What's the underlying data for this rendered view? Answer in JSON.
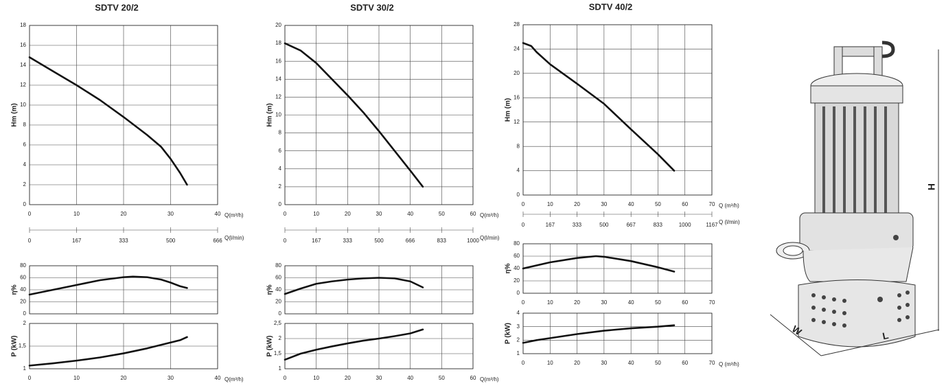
{
  "chart_data": [
    {
      "type": "line",
      "title": "SDTV 20/2",
      "ylabel": "Hm   (m)",
      "xlabel": "Q(m³/h)",
      "color": "#111",
      "x": [
        0,
        5,
        10,
        15,
        20,
        25,
        28,
        30,
        32,
        33.5
      ],
      "values": [
        14.8,
        13.4,
        12,
        10.5,
        8.8,
        7,
        5.8,
        4.6,
        3.2,
        2
      ],
      "xlim": [
        0,
        40
      ],
      "xticks": [
        0,
        10,
        20,
        30,
        40
      ],
      "ylim": [
        0,
        18
      ],
      "yticks": [
        0,
        2,
        4,
        6,
        8,
        10,
        12,
        14,
        16,
        18
      ],
      "x2label": "Q(l/min)",
      "x2lim": [
        0,
        666
      ],
      "x2ticks": [
        0,
        167,
        333,
        500,
        666
      ],
      "grid": true,
      "show_xtick_labels": true
    },
    {
      "type": "line",
      "ylabel": "η%",
      "color": "#111",
      "x": [
        0,
        5,
        10,
        15,
        20,
        22,
        25,
        28,
        30,
        32,
        33.5
      ],
      "values": [
        32,
        40,
        48,
        56,
        61,
        62,
        61,
        57,
        52,
        46,
        43
      ],
      "xlim": [
        0,
        40
      ],
      "xticks": [
        0,
        10,
        20,
        30,
        40
      ],
      "ylim": [
        0,
        80
      ],
      "yticks": [
        0,
        20,
        40,
        60,
        80
      ],
      "grid": true,
      "show_xtick_labels": false
    },
    {
      "type": "line",
      "ylabel": "P   (kW)",
      "xlabel": "Q(m³/h)",
      "color": "#111",
      "x": [
        0,
        5,
        10,
        15,
        20,
        25,
        30,
        32,
        33.5
      ],
      "values": [
        1.07,
        1.12,
        1.18,
        1.25,
        1.34,
        1.45,
        1.58,
        1.63,
        1.7
      ],
      "xlim": [
        0,
        40
      ],
      "xticks": [
        0,
        10,
        20,
        30,
        40
      ],
      "ylim": [
        1,
        2
      ],
      "yticks": [
        1,
        {
          "value": 1.5,
          "label": "1,5"
        },
        2
      ],
      "grid": true,
      "show_xtick_labels": true
    },
    {
      "type": "line",
      "title": "SDTV 30/2",
      "ylabel": "Hm   (m)",
      "xlabel": "Q(m³/h)",
      "color": "#111",
      "x": [
        0,
        5,
        10,
        15,
        20,
        25,
        30,
        35,
        40,
        44
      ],
      "values": [
        18,
        17.2,
        15.8,
        14,
        12.2,
        10.3,
        8.2,
        6,
        3.8,
        2
      ],
      "xlim": [
        0,
        60
      ],
      "xticks": [
        0,
        10,
        20,
        30,
        40,
        50,
        60
      ],
      "ylim": [
        0,
        20
      ],
      "yticks": [
        0,
        2,
        4,
        6,
        8,
        10,
        12,
        14,
        16,
        18,
        20
      ],
      "x2label": "Q(l/min)",
      "x2lim": [
        0,
        1000
      ],
      "x2ticks": [
        0,
        167,
        333,
        500,
        666,
        833,
        1000
      ],
      "grid": true,
      "show_xtick_labels": true
    },
    {
      "type": "line",
      "ylabel": "η%",
      "color": "#111",
      "x": [
        0,
        5,
        10,
        15,
        20,
        25,
        30,
        35,
        40,
        44
      ],
      "values": [
        33,
        42,
        50,
        54,
        57,
        59,
        60,
        59,
        54,
        44
      ],
      "xlim": [
        0,
        60
      ],
      "xticks": [
        0,
        10,
        20,
        30,
        40,
        50,
        60
      ],
      "ylim": [
        0,
        80
      ],
      "yticks": [
        0,
        20,
        40,
        60,
        80
      ],
      "grid": true,
      "show_xtick_labels": false
    },
    {
      "type": "line",
      "ylabel": "P   (kW)",
      "xlabel": "Q(m³/h)",
      "color": "#111",
      "x": [
        0,
        5,
        10,
        15,
        20,
        25,
        30,
        35,
        40,
        44
      ],
      "values": [
        1.3,
        1.5,
        1.63,
        1.74,
        1.84,
        1.93,
        2.0,
        2.08,
        2.17,
        2.3
      ],
      "xlim": [
        0,
        60
      ],
      "xticks": [
        0,
        10,
        20,
        30,
        40,
        50,
        60
      ],
      "ylim": [
        1,
        2.5
      ],
      "yticks": [
        1,
        {
          "value": 1.5,
          "label": "1,5"
        },
        2,
        {
          "value": 2.5,
          "label": "2,5"
        }
      ],
      "grid": true,
      "show_xtick_labels": true
    },
    {
      "type": "line",
      "title": "SDTV 40/2",
      "ylabel": "Hm   (m)",
      "xlabel": "Q (m³/h)",
      "color": "#111",
      "x": [
        0,
        3,
        5,
        10,
        20,
        30,
        40,
        50,
        56
      ],
      "values": [
        25,
        24.5,
        23.5,
        21.5,
        18.3,
        15,
        10.8,
        6.7,
        4
      ],
      "xlim": [
        0,
        70
      ],
      "xticks": [
        0,
        10,
        20,
        30,
        40,
        50,
        60,
        70
      ],
      "ylim": [
        0,
        28
      ],
      "yticks": [
        0,
        4,
        8,
        12,
        16,
        20,
        24,
        28
      ],
      "x2label": "Q (l/min)",
      "x2lim": [
        0,
        1167
      ],
      "x2ticks": [
        0,
        167,
        333,
        500,
        667,
        833,
        1000,
        1167
      ],
      "grid": true,
      "show_xtick_labels": true
    },
    {
      "type": "line",
      "ylabel": "η%",
      "color": "#111",
      "x": [
        0,
        10,
        20,
        27,
        30,
        40,
        50,
        56
      ],
      "values": [
        40,
        50,
        57,
        60,
        59,
        52,
        42,
        35
      ],
      "xlim": [
        0,
        70
      ],
      "xticks": [
        0,
        10,
        20,
        30,
        40,
        50,
        60,
        70
      ],
      "ylim": [
        0,
        80
      ],
      "yticks": [
        0,
        20,
        40,
        60,
        80
      ],
      "grid": true,
      "show_xtick_labels": true
    },
    {
      "type": "line",
      "ylabel": "P   (kW)",
      "xlabel": "Q (m³/h)",
      "color": "#111",
      "x": [
        0,
        5,
        10,
        20,
        30,
        40,
        50,
        56
      ],
      "values": [
        1.8,
        2.0,
        2.15,
        2.45,
        2.7,
        2.88,
        3.0,
        3.1
      ],
      "xlim": [
        0,
        70
      ],
      "xticks": [
        0,
        10,
        20,
        30,
        40,
        50,
        60,
        70
      ],
      "ylim": [
        1,
        4
      ],
      "yticks": [
        1,
        2,
        3,
        4
      ],
      "grid": true,
      "show_xtick_labels": true
    }
  ],
  "drawing": {
    "labels": [
      "H",
      "W",
      "L"
    ]
  }
}
